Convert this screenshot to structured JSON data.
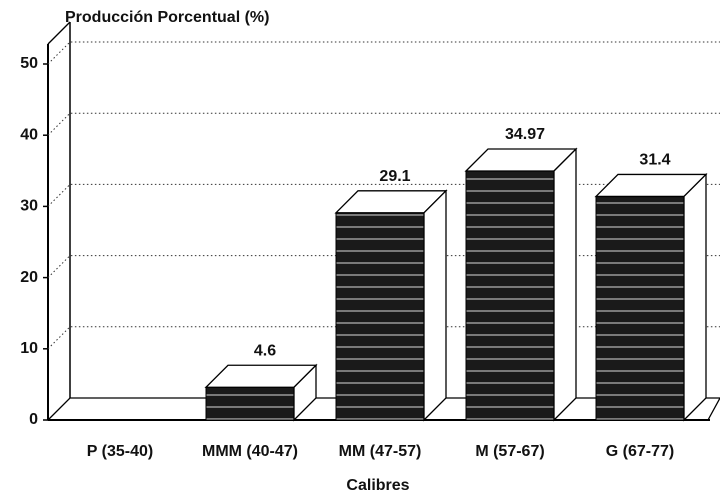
{
  "chart_data": {
    "type": "bar3d",
    "y_axis_label": "Producción Porcentual (%)",
    "x_axis_label": "Calibres",
    "categories": [
      "P (35-40)",
      "MMM (40-47)",
      "MM (47-57)",
      "M (57-67)",
      "G (67-77)"
    ],
    "values": [
      0,
      4.6,
      29.1,
      34.97,
      31.4
    ],
    "color": "#1a1a1a",
    "ylim": [
      0,
      50
    ],
    "yticks": [
      0,
      10,
      20,
      30,
      40,
      50
    ],
    "grid": true
  }
}
